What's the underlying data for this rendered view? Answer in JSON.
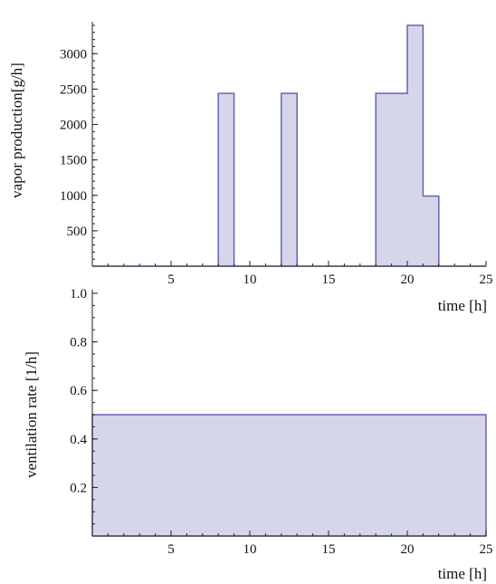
{
  "chart_data": [
    {
      "type": "area",
      "step": true,
      "title": "",
      "xlabel": "",
      "ylabel": "vapor production[g/h]",
      "xlim": [
        0,
        25
      ],
      "ylim": [
        0,
        3400
      ],
      "x_ticks": [
        5,
        10,
        15,
        20,
        25
      ],
      "x_tick_labels": [
        "5",
        "10",
        "15",
        "20",
        "25"
      ],
      "y_ticks": [
        500,
        1000,
        1500,
        2000,
        2500,
        3000
      ],
      "y_tick_labels": [
        "500",
        "1000",
        "1500",
        "2000",
        "2500",
        "3000"
      ],
      "grid": false,
      "series": [
        {
          "color": "#6464b4",
          "fill": "#d6d6ea",
          "segments": [
            {
              "x_start": 0,
              "x_end": 8,
              "y": 0
            },
            {
              "x_start": 8,
              "x_end": 9,
              "y": 2440
            },
            {
              "x_start": 9,
              "x_end": 12,
              "y": 0
            },
            {
              "x_start": 12,
              "x_end": 13,
              "y": 2440
            },
            {
              "x_start": 13,
              "x_end": 18,
              "y": 0
            },
            {
              "x_start": 18,
              "x_end": 20,
              "y": 2440
            },
            {
              "x_start": 20,
              "x_end": 21,
              "y": 3400
            },
            {
              "x_start": 21,
              "x_end": 22,
              "y": 990
            },
            {
              "x_start": 22,
              "x_end": 25,
              "y": 0
            }
          ]
        }
      ]
    },
    {
      "type": "area",
      "step": true,
      "title": "",
      "xlabel": "time [h]",
      "ylabel": "ventilation rate [1/h]",
      "xlim": [
        0,
        25
      ],
      "ylim": [
        0,
        1.0
      ],
      "x_ticks": [
        5,
        10,
        15,
        20,
        25
      ],
      "x_tick_labels": [
        "5",
        "10",
        "15",
        "20",
        "25"
      ],
      "y_ticks": [
        0.2,
        0.4,
        0.6,
        0.8,
        1.0
      ],
      "y_tick_labels": [
        "0.2",
        "0.4",
        "0.6",
        "0.8",
        "1.0"
      ],
      "grid": false,
      "series": [
        {
          "color": "#6464b4",
          "fill": "#d6d6ea",
          "segments": [
            {
              "x_start": 0,
              "x_end": 25,
              "y": 0.5
            }
          ]
        }
      ]
    }
  ],
  "between_label": "time [h]"
}
